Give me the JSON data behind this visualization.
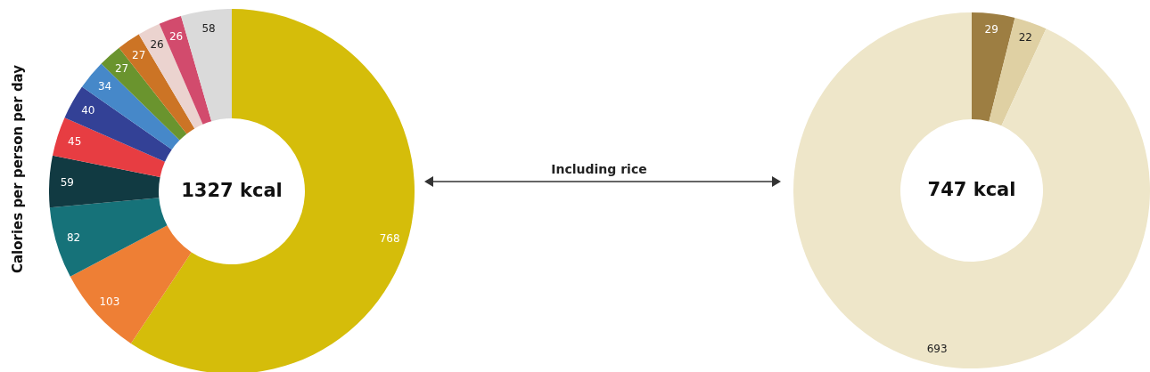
{
  "chart_data": [
    {
      "type": "donut",
      "ylabel": "Calories per person per day",
      "categories": [
        null,
        null,
        null,
        null,
        null,
        null,
        null,
        null,
        null,
        null,
        null,
        null
      ],
      "values": [
        768,
        103,
        82,
        59,
        45,
        40,
        34,
        27,
        27,
        26,
        26,
        58
      ],
      "colors": [
        "#d5bd0a",
        "#ee7f35",
        "#167279",
        "#113a42",
        "#e73d42",
        "#334196",
        "#4688c9",
        "#6a942e",
        "#cc7425",
        "#ebd3cf",
        "#d24b6d",
        "#dadada"
      ],
      "data_labels": true,
      "annotations": [
        "1327 kcal",
        "Including rice"
      ]
    },
    {
      "type": "donut",
      "categories": [
        null,
        null,
        null
      ],
      "values": [
        29,
        22,
        693
      ],
      "colors": [
        "#9d7e42",
        "#dfd0a3",
        "#eee6c9"
      ],
      "data_labels": true,
      "annotations": [
        "747 kcal"
      ]
    }
  ]
}
